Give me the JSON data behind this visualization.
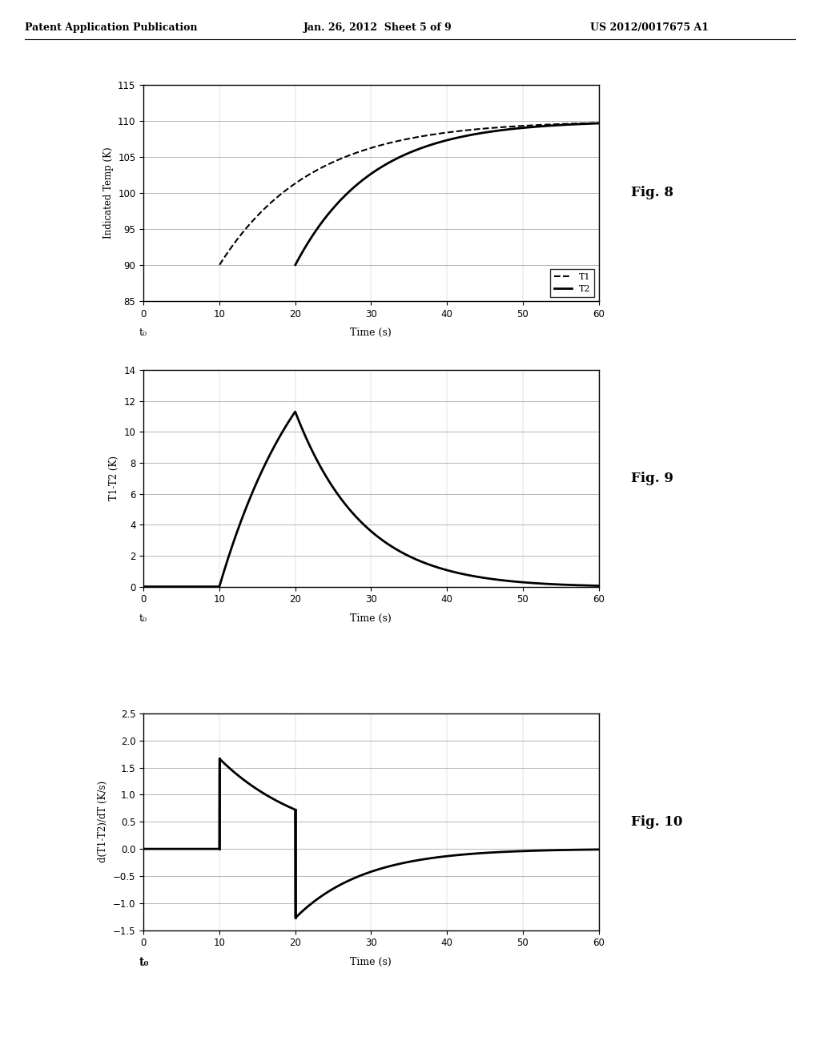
{
  "fig8": {
    "ylabel": "Indicated Temp (K)",
    "xlabel": "Time (s)",
    "xlabel2": "t₀",
    "ylim": [
      85,
      115
    ],
    "xlim": [
      0,
      60
    ],
    "yticks": [
      85,
      90,
      95,
      100,
      105,
      110,
      115
    ],
    "xticks": [
      0,
      10,
      20,
      30,
      40,
      50,
      60
    ],
    "T1_start": 10,
    "T2_start": 20,
    "T_final": 110,
    "T_initial": 90,
    "tau1": 12,
    "tau2": 10,
    "legend_T1": "T1",
    "legend_T2": "T2",
    "fig_label": "Fig. 8"
  },
  "fig9": {
    "ylabel": "T1-T2 (K)",
    "xlabel": "Time (s)",
    "xlabel2": "t₀",
    "ylim": [
      0,
      14
    ],
    "xlim": [
      0,
      60
    ],
    "yticks": [
      0,
      2,
      4,
      6,
      8,
      10,
      12,
      14
    ],
    "xticks": [
      0,
      10,
      20,
      30,
      40,
      50,
      60
    ],
    "fig_label": "Fig. 9"
  },
  "fig10": {
    "ylabel": "d(T1-T2)/dT (K/s)",
    "xlabel": "Time (s)",
    "xlabel2": "t₀",
    "ylim": [
      -1.5,
      2.5
    ],
    "xlim": [
      0,
      60
    ],
    "yticks": [
      -1.5,
      -1.0,
      -0.5,
      0,
      0.5,
      1.0,
      1.5,
      2.0,
      2.5
    ],
    "xticks": [
      0,
      10,
      20,
      30,
      40,
      50,
      60
    ],
    "fig_label": "Fig. 10"
  },
  "background_color": "#ffffff",
  "line_color": "#000000",
  "header_left": "Patent Application Publication",
  "header_mid": "Jan. 26, 2012  Sheet 5 of 9",
  "header_right": "US 2012/0017675 A1"
}
